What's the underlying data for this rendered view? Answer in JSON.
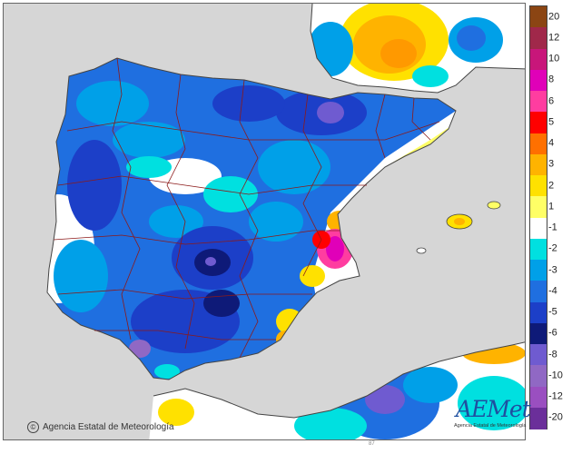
{
  "map": {
    "legend": {
      "labels": [
        "20",
        "12",
        "10",
        "8",
        "6",
        "5",
        "4",
        "3",
        "2",
        "1",
        "-1",
        "-2",
        "-3",
        "-4",
        "-5",
        "-6",
        "-8",
        "-10",
        "-12",
        "-20"
      ],
      "colors": [
        "#8b4513",
        "#a0284a",
        "#c8167a",
        "#e000b8",
        "#ff3da0",
        "#ff0000",
        "#ff7000",
        "#ffb300",
        "#ffe100",
        "#ffff66",
        "#ffffff",
        "#00e0e0",
        "#00a0e8",
        "#1f6fe0",
        "#1c3fc8",
        "#0e1a78",
        "#6f5bd0",
        "#9068c4",
        "#9a4fc0",
        "#6b2f9a"
      ]
    },
    "colors": {
      "sea": "#d6d6d6",
      "border": "#8b1a1a",
      "coast": "#444444"
    },
    "credit": "Agencia Estatal de Meteorología",
    "logo": {
      "word": "AEMet",
      "tagline": "Agencia Estatal de Meteorología"
    },
    "bottom_mark": "87"
  }
}
